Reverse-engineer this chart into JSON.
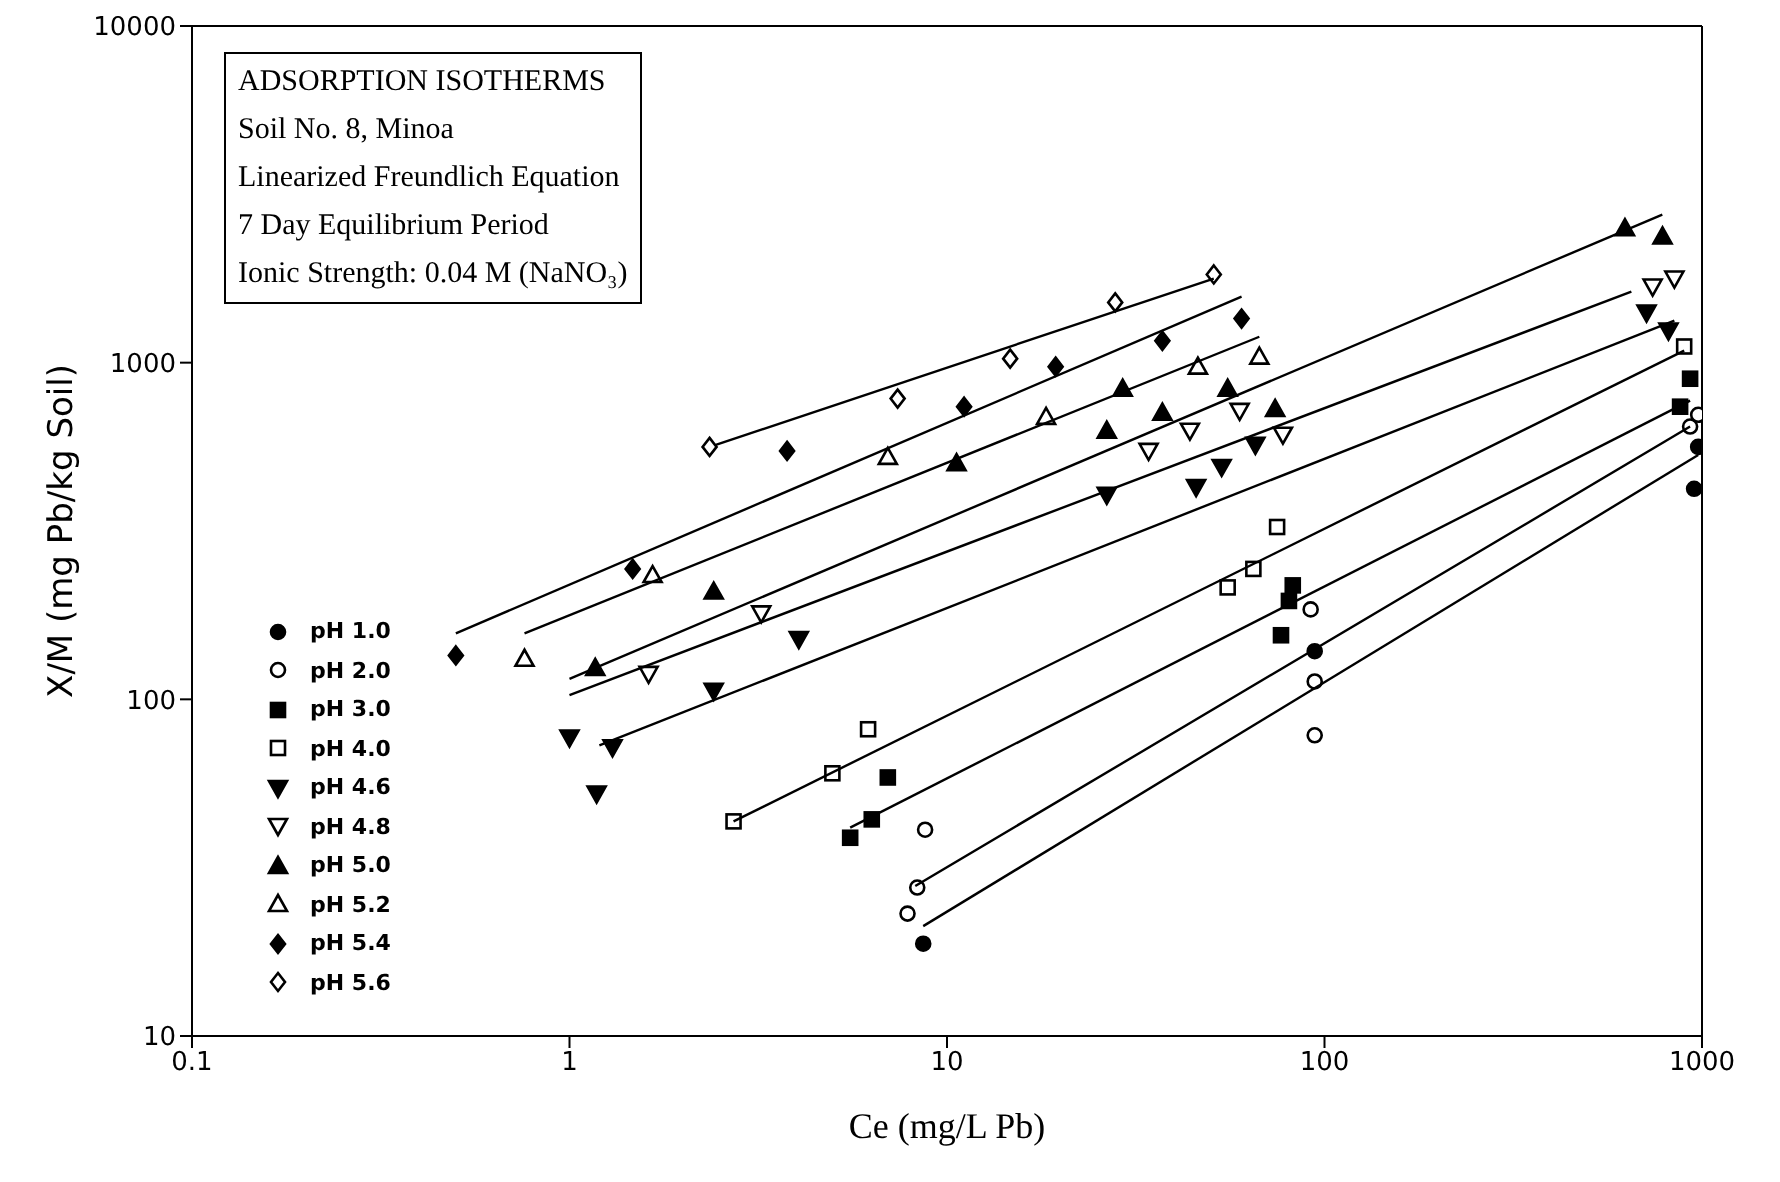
{
  "chart_data": {
    "type": "scatter",
    "title": "ADSORPTION ISOTHERMS",
    "annotations": [
      "Soil No. 8, Minoa",
      "Linearized Freundlich Equation",
      "7 Day Equilibrium Period",
      "Ionic Strength: 0.04 M (NaNO₃)"
    ],
    "xlabel": "Ce  (mg/L Pb)",
    "ylabel": "X/M  (mg Pb/kg Soil)",
    "log": "xy",
    "xlim": [
      0.1,
      1000
    ],
    "xticks": [
      0.1,
      1,
      10,
      100,
      1000
    ],
    "ylim": [
      10,
      10000
    ],
    "yticks": [
      10,
      100,
      1000,
      10000
    ],
    "legend": "bottom left",
    "series": [
      {
        "name": "pH 1.0",
        "color": "#000000",
        "marker": "circle",
        "x": [
          8.65,
          94.2,
          977,
          953
        ],
        "values": [
          18.8,
          139,
          562,
          422
        ]
      },
      {
        "name": "pH 2.0",
        "color": "#ffffff",
        "marker": "circle",
        "x": [
          8.75,
          8.34,
          7.86,
          91.9,
          94.2,
          94.2,
          930,
          977
        ],
        "values": [
          41,
          27.6,
          23.1,
          185,
          113,
          78.2,
          646,
          700
        ]
      },
      {
        "name": "pH 3.0",
        "color": "#000000",
        "marker": "square",
        "x": [
          5.54,
          6.32,
          6.97,
          76.7,
          80.5,
          82.4,
          930,
          875
        ],
        "values": [
          38.8,
          44,
          58.6,
          155,
          196,
          218,
          896,
          740
        ]
      },
      {
        "name": "pH 4.0",
        "color": "#ffffff",
        "marker": "square",
        "x": [
          2.72,
          4.97,
          6.18,
          55.4,
          64.8,
          74.9,
          897
        ],
        "values": [
          43.4,
          60.3,
          81.5,
          215,
          244,
          325,
          1117
        ]
      },
      {
        "name": "pH 4.6",
        "color": "#000000",
        "marker": "triangle-down",
        "x": [
          1.0,
          1.3,
          1.18,
          2.41,
          4.05,
          26.5,
          45.7,
          53.4,
          65.6,
          713,
          815
        ],
        "values": [
          77,
          72,
          52.5,
          106,
          151,
          405,
          427,
          490,
          570,
          1409,
          1245
        ]
      },
      {
        "name": "pH 4.8",
        "color": "#ffffff",
        "marker": "triangle-down",
        "x": [
          1.62,
          3.22,
          34.2,
          44,
          59.6,
          77.6,
          740,
          845
        ],
        "values": [
          119,
          180,
          547,
          628,
          719,
          611,
          1683,
          1778
        ]
      },
      {
        "name": "pH 5.0",
        "color": "#000000",
        "marker": "triangle",
        "x": [
          1.17,
          2.41,
          10.6,
          29.2,
          26.5,
          37.2,
          55.4,
          74,
          625,
          786
        ],
        "values": [
          124,
          209,
          503,
          837,
          628,
          710,
          837,
          729,
          2508,
          2371
        ]
      },
      {
        "name": "pH 5.2",
        "color": "#ffffff",
        "marker": "triangle",
        "x": [
          0.76,
          1.66,
          6.97,
          18.3,
          46.2,
          67.2
        ],
        "values": [
          132,
          234,
          525,
          690,
          973,
          1042
        ]
      },
      {
        "name": "pH 5.4",
        "color": "#000000",
        "marker": "diamond",
        "x": [
          0.5,
          1.47,
          3.77,
          11.1,
          19.4,
          37.2,
          60.3
        ],
        "values": [
          135,
          244,
          547,
          740,
          973,
          1161,
          1352
        ]
      },
      {
        "name": "pH 5.6",
        "color": "#ffffff",
        "marker": "diamond",
        "x": [
          2.35,
          7.4,
          14.7,
          27.9,
          50.9
        ],
        "values": [
          562,
          782,
          1028,
          1510,
          1828
        ]
      },
      {
        "type": "line",
        "color": "#000000",
        "x": [
          8.65,
          977
        ],
        "values": [
          21.2,
          532
        ]
      },
      {
        "type": "line",
        "color": "#000000",
        "x": [
          8.24,
          930
        ],
        "values": [
          27.9,
          646
        ]
      },
      {
        "type": "line",
        "color": "#000000",
        "x": [
          5.54,
          930
        ],
        "values": [
          41.6,
          771
        ]
      },
      {
        "type": "line",
        "color": "#000000",
        "x": [
          2.72,
          897
        ],
        "values": [
          43.4,
          1086
        ]
      },
      {
        "type": "line",
        "color": "#000000",
        "x": [
          1.2,
          845
        ],
        "values": [
          73,
          1334
        ]
      },
      {
        "type": "line",
        "color": "#000000",
        "x": [
          1.0,
          650
        ],
        "values": [
          103,
          1626
        ]
      },
      {
        "type": "line",
        "color": "#000000",
        "x": [
          1.0,
          785
        ],
        "values": [
          115,
          2754
        ]
      },
      {
        "type": "line",
        "color": "#000000",
        "x": [
          0.76,
          67.2
        ],
        "values": [
          157,
          1194
        ]
      },
      {
        "type": "line",
        "color": "#000000",
        "x": [
          0.5,
          60.3
        ],
        "values": [
          157,
          1571
        ]
      },
      {
        "type": "line",
        "color": "#000000",
        "x": [
          2.44,
          50.9
        ],
        "values": [
          570,
          1778
        ]
      }
    ]
  }
}
